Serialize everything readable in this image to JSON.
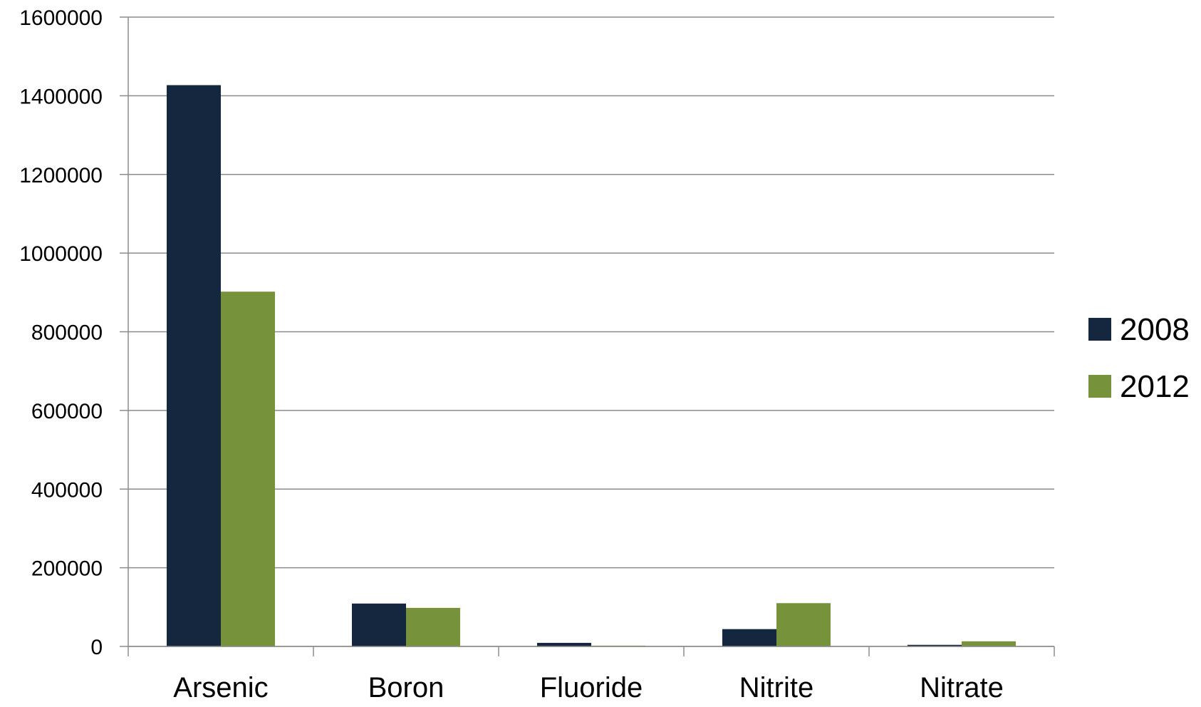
{
  "chart_data": {
    "type": "bar",
    "title": "",
    "xlabel": "",
    "ylabel": "",
    "categories": [
      "Arsenic",
      "Boron",
      "Fluoride",
      "Nitrite",
      "Nitrate"
    ],
    "series": [
      {
        "name": "2008",
        "color": "#15263f",
        "values": [
          1427000,
          109000,
          9000,
          44000,
          4000
        ]
      },
      {
        "name": "2012",
        "color": "#76933c",
        "values": [
          902000,
          98000,
          2000,
          110000,
          13000
        ]
      }
    ],
    "ylim": [
      0,
      1600000
    ],
    "yticks": [
      "0",
      "200000",
      "400000",
      "600000",
      "800000",
      "1000000",
      "1200000",
      "1400000",
      "1600000"
    ],
    "grid": true,
    "legend_position": "right"
  }
}
